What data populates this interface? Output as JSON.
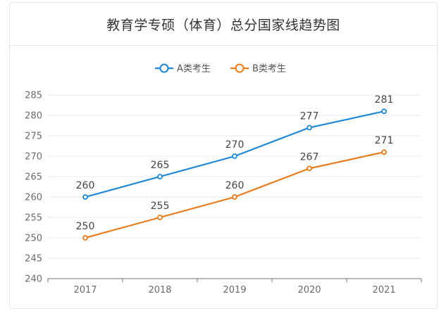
{
  "title": "教育学专硕（体育）总分国家线趋势图",
  "chart_data": {
    "type": "line",
    "title": "教育学专硕（体育）总分国家线趋势图",
    "xlabel": "",
    "ylabel": "",
    "categories": [
      "2017",
      "2018",
      "2019",
      "2020",
      "2021"
    ],
    "series": [
      {
        "name": "A类考生",
        "color": "#1e88d6",
        "values": [
          260,
          265,
          270,
          277,
          281
        ]
      },
      {
        "name": "B类考生",
        "color": "#e87b1c",
        "values": [
          250,
          255,
          260,
          267,
          271
        ]
      }
    ],
    "ylim": [
      240,
      285
    ],
    "yticks": [
      240,
      245,
      250,
      255,
      260,
      265,
      270,
      275,
      280,
      285
    ],
    "grid": true,
    "legend_position": "top-center",
    "data_labels": true
  }
}
